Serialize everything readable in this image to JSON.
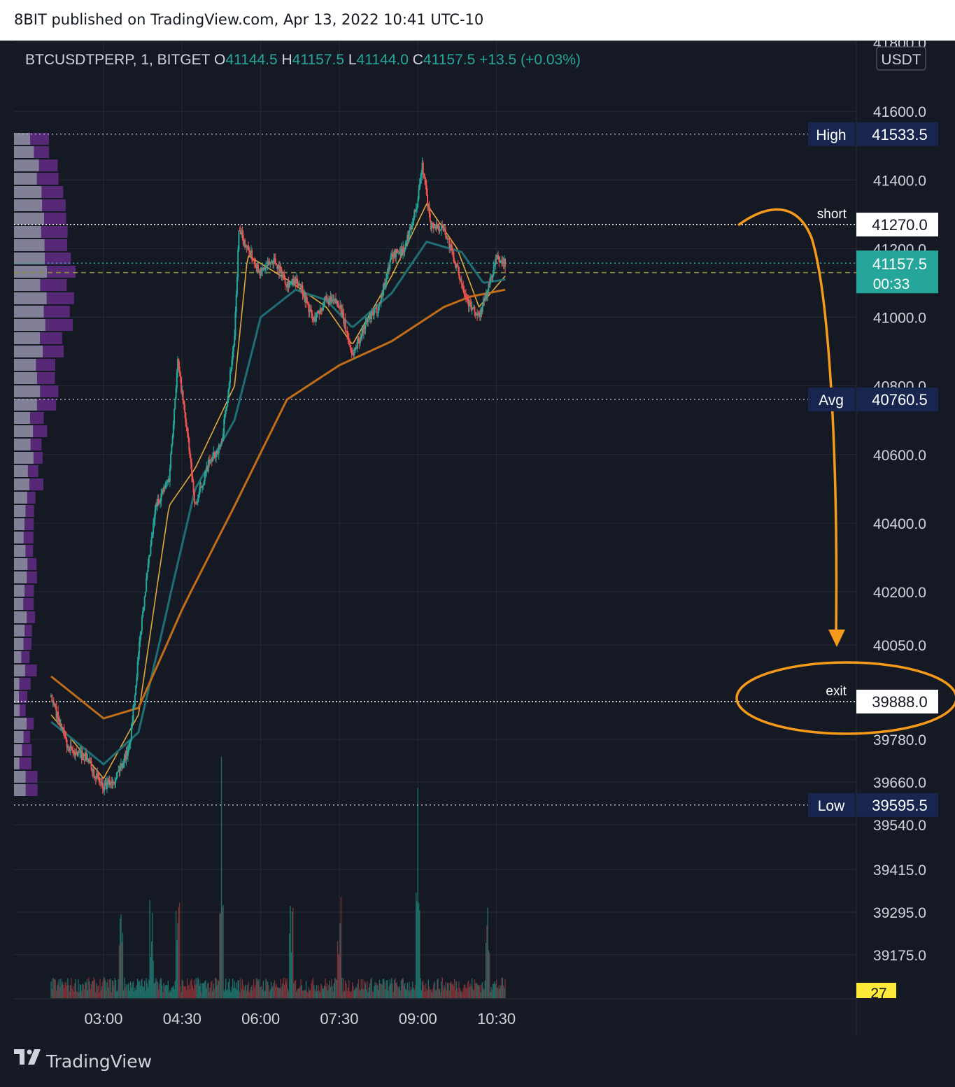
{
  "header": {
    "publisher_line": "8BIT published on TradingView.com, Apr 13, 2022 10:41 UTC-10"
  },
  "footer": {
    "brand": "TradingView"
  },
  "colors": {
    "background": "#151924",
    "grid": "#262a36",
    "candle_up": "#26a69a",
    "candle_down": "#ef5350",
    "ma_fast": "#e0a83a",
    "ma_mid": "#1f6e74",
    "ma_slow": "#c06c18",
    "annotation": "#f59a1a",
    "label_blue": "#17254f",
    "label_teal": "#26a69a",
    "vol_badge": "#ffe93b"
  },
  "chart_data": {
    "type": "candlestick",
    "symbol_line": {
      "symbol": "BTCUSDTPERP, 1, BITGET",
      "o_label": "O",
      "o": "41144.5",
      "h_label": "H",
      "h": "41157.5",
      "l_label": "L",
      "l": "41144.0",
      "c_label": "C",
      "c": "41157.5",
      "change": "+13.5 (+0.03%)"
    },
    "currency": "USDT",
    "y_ticks": [
      "41800.0",
      "41600.0",
      "41400.0",
      "41200.0",
      "41000.0",
      "40800.0",
      "40600.0",
      "40400.0",
      "40200.0",
      "40050.0",
      "39780.0",
      "39660.0",
      "39540.0",
      "39415.0",
      "39295.0",
      "39175.0"
    ],
    "x_ticks": [
      "03:00",
      "04:30",
      "06:00",
      "07:30",
      "09:00",
      "10:30"
    ],
    "price_labels": [
      {
        "name": "High",
        "value": "41533.5"
      },
      {
        "name": "short",
        "value": "41270.0"
      },
      {
        "name": "current",
        "value": "41157.5",
        "countdown": "00:33"
      },
      {
        "name": "Avg",
        "value": "40760.5"
      },
      {
        "name": "exit",
        "value": "39888.0"
      },
      {
        "name": "Low",
        "value": "39595.5"
      }
    ],
    "volume_badge": "27",
    "price_path": [
      [
        "02:00",
        39900
      ],
      [
        "02:20",
        39750
      ],
      [
        "02:40",
        39730
      ],
      [
        "03:00",
        39640
      ],
      [
        "03:15",
        39680
      ],
      [
        "03:30",
        39760
      ],
      [
        "03:45",
        40150
      ],
      [
        "04:00",
        40450
      ],
      [
        "04:15",
        40530
      ],
      [
        "04:25",
        40870
      ],
      [
        "04:35",
        40680
      ],
      [
        "04:45",
        40450
      ],
      [
        "05:00",
        40570
      ],
      [
        "05:15",
        40630
      ],
      [
        "05:30",
        40940
      ],
      [
        "05:35",
        41250
      ],
      [
        "05:45",
        41200
      ],
      [
        "06:00",
        41130
      ],
      [
        "06:15",
        41170
      ],
      [
        "06:30",
        41100
      ],
      [
        "06:45",
        41100
      ],
      [
        "07:00",
        40990
      ],
      [
        "07:15",
        41050
      ],
      [
        "07:30",
        41040
      ],
      [
        "07:45",
        40890
      ],
      [
        "08:00",
        40980
      ],
      [
        "08:15",
        41030
      ],
      [
        "08:30",
        41180
      ],
      [
        "08:45",
        41200
      ],
      [
        "09:00",
        41340
      ],
      [
        "09:05",
        41440
      ],
      [
        "09:15",
        41270
      ],
      [
        "09:30",
        41260
      ],
      [
        "09:45",
        41140
      ],
      [
        "10:00",
        41030
      ],
      [
        "10:10",
        41000
      ],
      [
        "10:20",
        41080
      ],
      [
        "10:30",
        41170
      ],
      [
        "10:40",
        41157.5
      ]
    ],
    "moving_averages": [
      {
        "period": "fast",
        "path": [
          [
            "02:00",
            39850
          ],
          [
            "03:00",
            39670
          ],
          [
            "03:40",
            39850
          ],
          [
            "04:15",
            40450
          ],
          [
            "04:45",
            40560
          ],
          [
            "05:30",
            40800
          ],
          [
            "05:45",
            41180
          ],
          [
            "06:30",
            41110
          ],
          [
            "07:15",
            41030
          ],
          [
            "07:45",
            40920
          ],
          [
            "08:30",
            41120
          ],
          [
            "09:10",
            41330
          ],
          [
            "09:45",
            41200
          ],
          [
            "10:10",
            41030
          ],
          [
            "10:40",
            41120
          ]
        ]
      },
      {
        "period": "mid",
        "path": [
          [
            "02:00",
            39830
          ],
          [
            "03:00",
            39710
          ],
          [
            "03:40",
            39800
          ],
          [
            "04:10",
            40120
          ],
          [
            "04:45",
            40500
          ],
          [
            "05:30",
            40700
          ],
          [
            "06:00",
            41000
          ],
          [
            "06:40",
            41080
          ],
          [
            "07:15",
            41050
          ],
          [
            "07:45",
            40970
          ],
          [
            "08:30",
            41070
          ],
          [
            "09:10",
            41220
          ],
          [
            "09:50",
            41190
          ],
          [
            "10:15",
            41100
          ],
          [
            "10:40",
            41110
          ]
        ]
      },
      {
        "period": "slow",
        "path": [
          [
            "02:00",
            39960
          ],
          [
            "03:00",
            39840
          ],
          [
            "03:40",
            39870
          ],
          [
            "04:30",
            40150
          ],
          [
            "05:30",
            40450
          ],
          [
            "06:30",
            40760
          ],
          [
            "07:30",
            40860
          ],
          [
            "08:30",
            40930
          ],
          [
            "09:30",
            41030
          ],
          [
            "10:00",
            41060
          ],
          [
            "10:40",
            41080
          ]
        ]
      }
    ]
  }
}
